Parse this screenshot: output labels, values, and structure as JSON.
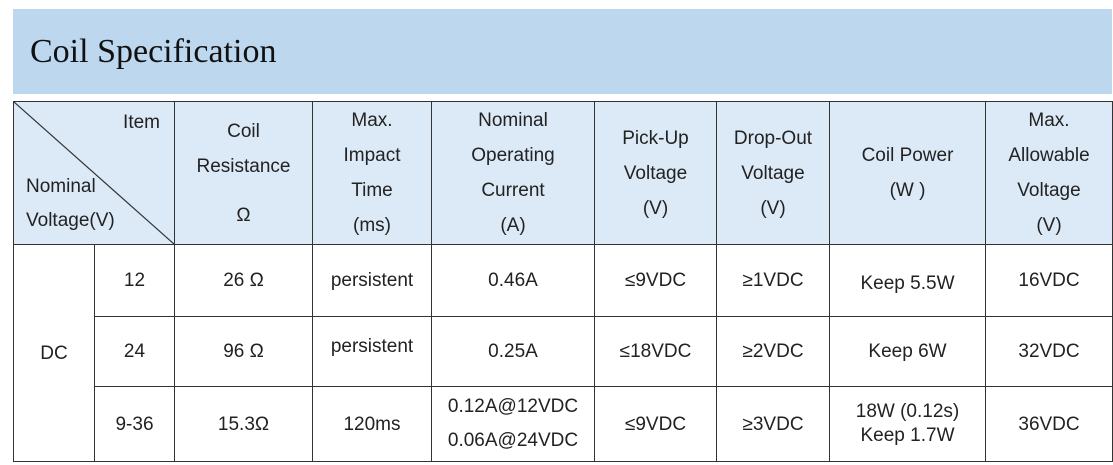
{
  "title": "Coil Specification",
  "header": {
    "item": "Item",
    "nominal": [
      "Nominal",
      "Voltage(V)"
    ],
    "columns": [
      [
        "Coil",
        "Resistance",
        "Ω"
      ],
      [
        "Max.",
        "Impact",
        "Time",
        "(ms)"
      ],
      [
        "Nominal",
        "Operating",
        "Current",
        "(A)"
      ],
      [
        "Pick-Up",
        "Voltage",
        "(V)"
      ],
      [
        "Drop-Out",
        "Voltage",
        "(V)"
      ],
      [
        "Coil Power",
        "(W )"
      ],
      [
        "Max.",
        "Allowable",
        "Voltage",
        "(V)"
      ]
    ]
  },
  "type_label": "DC",
  "rows": [
    {
      "voltage": "12",
      "resistance": "26 Ω",
      "impact": "persistent",
      "current": [
        "0.46A"
      ],
      "pickup": "≤9VDC",
      "dropout": "≥1VDC",
      "power": [
        "Keep 5.5W"
      ],
      "max_voltage": "16VDC"
    },
    {
      "voltage": "24",
      "resistance": "96 Ω",
      "impact": "persistent",
      "current": [
        "0.25A"
      ],
      "pickup": "≤18VDC",
      "dropout": "≥2VDC",
      "power": [
        "Keep 6W"
      ],
      "max_voltage": "32VDC"
    },
    {
      "voltage": "9-36",
      "resistance": "15.3Ω",
      "impact": "120ms",
      "current": [
        "0.12A@12VDC",
        "0.06A@24VDC"
      ],
      "pickup": "≤9VDC",
      "dropout": "≥3VDC",
      "power": [
        "18W (0.12s)",
        "Keep 1.7W"
      ],
      "max_voltage": "36VDC"
    }
  ]
}
